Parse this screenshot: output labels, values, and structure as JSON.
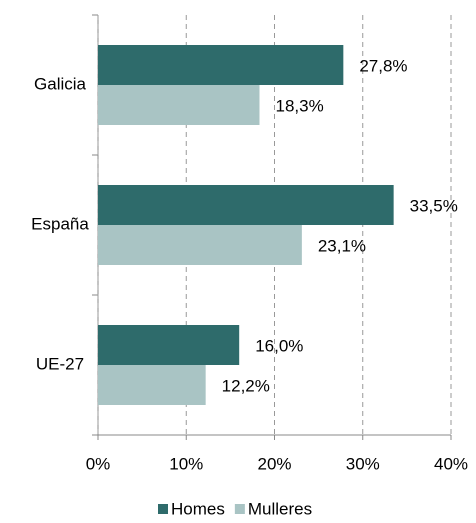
{
  "chart_data": {
    "type": "bar",
    "orientation": "horizontal",
    "categories": [
      "Galicia",
      "España",
      "UE-27"
    ],
    "series": [
      {
        "name": "Homes",
        "color": "#2e6b6b",
        "values": [
          27.8,
          33.5,
          16.0
        ],
        "value_labels": [
          "27,8%",
          "33,5%",
          "16,0%"
        ]
      },
      {
        "name": "Mulleres",
        "color": "#a9c4c4",
        "values": [
          18.3,
          23.1,
          12.2
        ],
        "value_labels": [
          "18,3%",
          "23,1%",
          "12,2%"
        ]
      }
    ],
    "xlim": [
      0,
      40
    ],
    "xticks": [
      {
        "value": 0,
        "label": "0%"
      },
      {
        "value": 10,
        "label": "10%"
      },
      {
        "value": 20,
        "label": "20%"
      },
      {
        "value": 30,
        "label": "30%"
      },
      {
        "value": 40,
        "label": "40%"
      }
    ],
    "grid": true,
    "legend": "bottom"
  }
}
